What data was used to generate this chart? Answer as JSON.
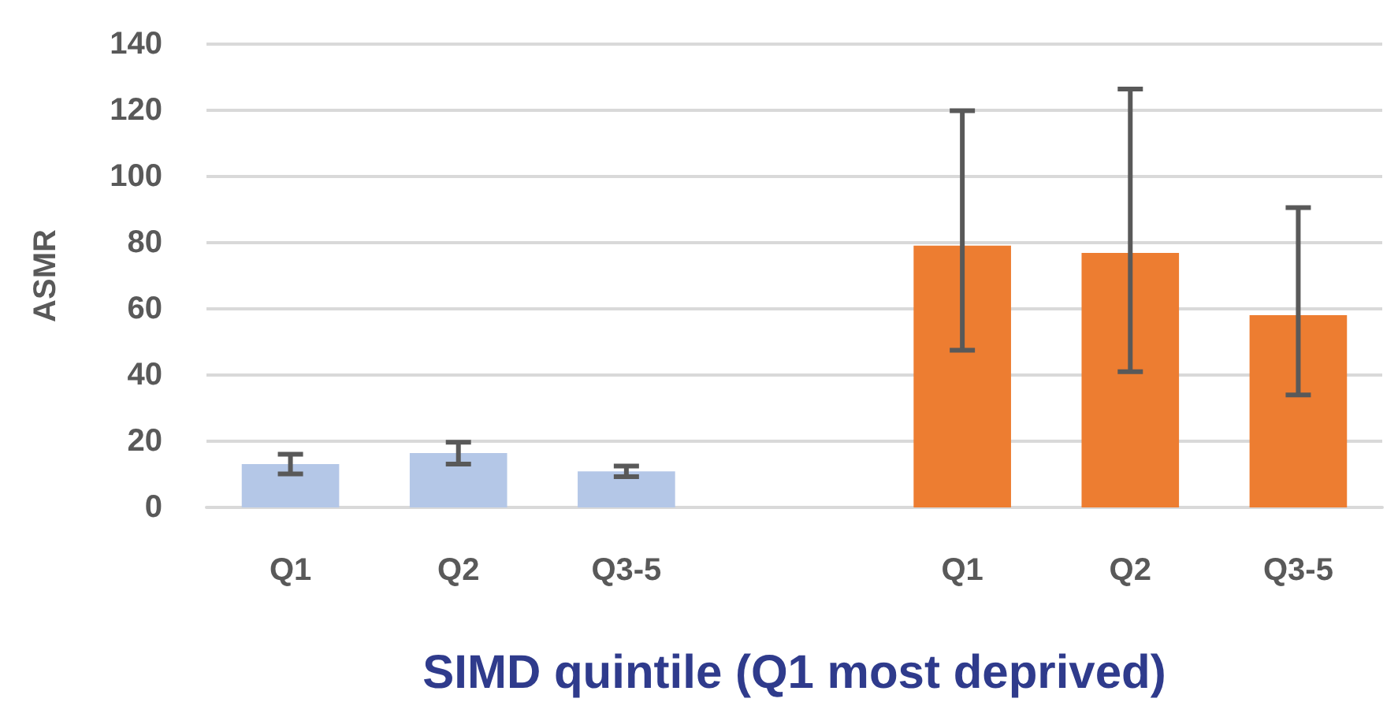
{
  "chart_data": {
    "type": "bar",
    "xlabel": "SIMD quintile (Q1 most deprived)",
    "ylabel": "ASMR",
    "categories": [
      "Q1",
      "Q2",
      "Q3-5",
      null,
      "Q1",
      "Q2",
      "Q3-5"
    ],
    "series": [
      {
        "color": "#b4c7e7",
        "values": [
          13.1,
          16.4,
          10.9,
          null,
          null,
          null,
          null
        ],
        "errors": [
          [
            10.1,
            16.1
          ],
          [
            13.1,
            19.7
          ],
          [
            9.3,
            12.5
          ],
          null,
          null,
          null,
          null
        ]
      },
      {
        "color": "#ed7d31",
        "values": [
          null,
          null,
          null,
          null,
          79.1,
          76.9,
          58.1
        ],
        "errors": [
          null,
          null,
          null,
          null,
          [
            47.5,
            119.9
          ],
          [
            41.0,
            126.4
          ],
          [
            34.0,
            90.6
          ]
        ]
      }
    ],
    "ylim": [
      0,
      140
    ],
    "yticks": [
      0,
      20,
      40,
      60,
      80,
      100,
      120,
      140
    ],
    "grid": "y"
  }
}
